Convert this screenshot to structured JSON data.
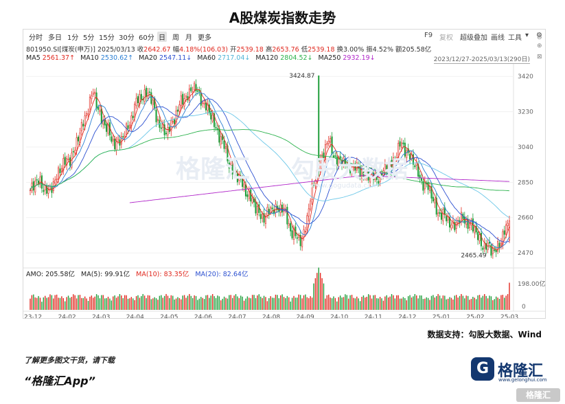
{
  "title": "A股煤炭指数走势",
  "toolbar": {
    "periods": [
      "分时",
      "多日",
      "1分",
      "5分",
      "15分",
      "30分",
      "60分",
      "日",
      "周",
      "月",
      "更多"
    ],
    "active_period": "日",
    "tools": [
      "F9",
      "复权",
      "超级叠加",
      "画线",
      "工具"
    ],
    "tools_disabled": [
      "复权"
    ]
  },
  "info": {
    "code": "801950.SI[煤炭(申万)]",
    "date": "2025/03/13",
    "close_label": "收",
    "close": "2642.67",
    "change_label": "幅",
    "change": "4.18%(106.03)",
    "open_label": "开",
    "open": "2539.18",
    "high_label": "高",
    "high": "2653.76",
    "low_label": "低",
    "low": "2539.18",
    "turnover_label": "换",
    "turnover": "3.00%",
    "amplitude_label": "振",
    "amplitude": "4.52%",
    "amount_label": "额",
    "amount": "205.58亿"
  },
  "range_label": "2023/12/27-2025/03/13(290日)",
  "ma_legend": [
    {
      "label": "MA5",
      "value": "2561.37↑",
      "color": "#e0281e"
    },
    {
      "label": "MA10",
      "value": "2530.62↑",
      "color": "#2a7fd4"
    },
    {
      "label": "MA20",
      "value": "2547.11↓",
      "color": "#2b4fd0"
    },
    {
      "label": "MA60",
      "value": "2717.04↓",
      "color": "#6bc7e8"
    },
    {
      "label": "MA120",
      "value": "2804.52↓",
      "color": "#2bb24c"
    },
    {
      "label": "MA250",
      "value": "2932.19↓",
      "color": "#b024c9"
    }
  ],
  "vol_legend": [
    {
      "label": "AMO:",
      "value": "205.58亿",
      "color": "#333333"
    },
    {
      "label": "MA(5):",
      "value": "99.91亿",
      "color": "#222222"
    },
    {
      "label": "MA(10):",
      "value": "83.35亿",
      "color": "#e0281e"
    },
    {
      "label": "MA(20):",
      "value": "82.64亿",
      "color": "#2b4fd0"
    }
  ],
  "chart_data": {
    "type": "candlestick",
    "y_ticks": [
      "3420",
      "3230",
      "3040",
      "2850",
      "2660",
      "2470"
    ],
    "ylim": [
      2400,
      3480
    ],
    "x_ticks": [
      "23-12",
      "24-02",
      "24-03",
      "24-04",
      "24-05",
      "24-06",
      "24-07",
      "24-08",
      "24-09",
      "24-10",
      "24-11",
      "24-12",
      "25-01",
      "25-02",
      "25-03"
    ],
    "annotations": {
      "high_label": "3424.87",
      "high_value": 3424.87,
      "low_label": "2465.49",
      "low_value": 2465.49
    },
    "close_path": [
      2800,
      2870,
      2780,
      2900,
      2960,
      3030,
      3200,
      3330,
      3180,
      3080,
      3060,
      3180,
      3300,
      3340,
      3200,
      3100,
      3210,
      3300,
      3360,
      3300,
      3200,
      3100,
      2950,
      2870,
      2800,
      2700,
      2660,
      2720,
      2700,
      2580,
      2520,
      2760,
      2960,
      3070,
      2960,
      2950,
      2920,
      2900,
      2870,
      2900,
      2960,
      3050,
      3000,
      2880,
      2820,
      2700,
      2650,
      2620,
      2660,
      2600,
      2520,
      2480,
      2520,
      2642.67
    ],
    "ma_values": {
      "MA5": "2561.37",
      "MA10": "2530.62",
      "MA20": "2547.11",
      "MA60": "2717.04",
      "MA120": "2804.52",
      "MA250": "2932.19"
    },
    "volume": {
      "label": "AMO",
      "ticks": [
        "198.00亿",
        "0"
      ],
      "last": 205.58,
      "unit": "亿"
    }
  },
  "watermark": {
    "brand": "格隆汇",
    "sub": "勾股大数据",
    "url": "www.gogudata.com"
  },
  "source": "数据支持：勾股大数据、Wind",
  "promo": {
    "line1": "了解更多图文干货，请下载",
    "line2": "“格隆汇App”"
  },
  "logo": {
    "mark": "G",
    "name": "格隆汇",
    "url": "www.gelonghui.com"
  },
  "corner_watermark": "格隆汇"
}
